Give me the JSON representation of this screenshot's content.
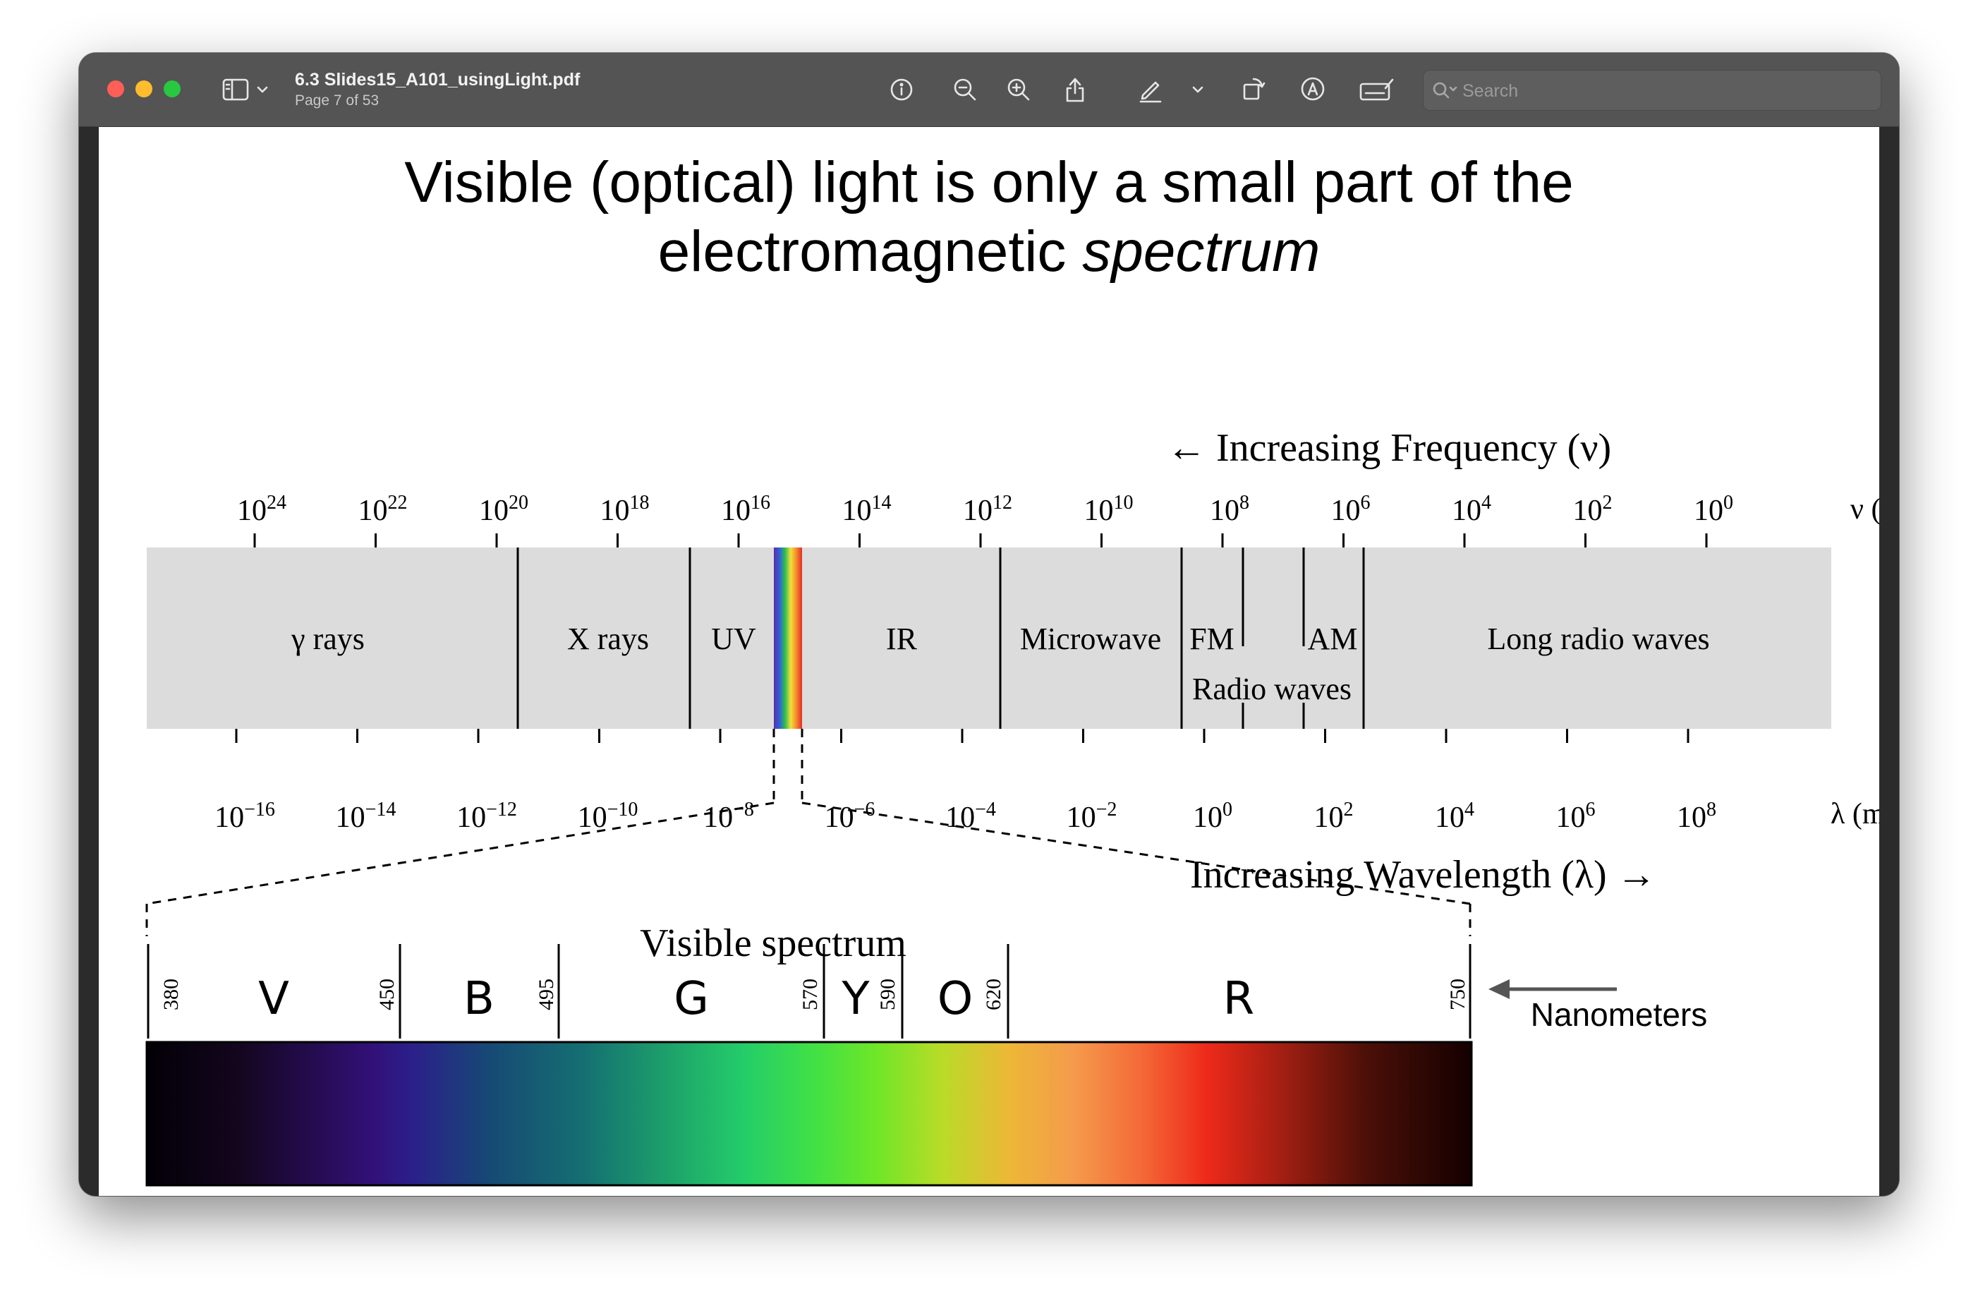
{
  "window": {
    "title": "6.3 Slides15_A101_usingLight.pdf",
    "subtitle": "Page 7 of 53"
  },
  "toolbar": {
    "icons": [
      "sidebar-icon",
      "chevron-down-icon",
      "info-icon",
      "zoom-out-icon",
      "zoom-in-icon",
      "share-icon",
      "markup-pen-icon",
      "chevron-down-icon",
      "rotate-icon",
      "annotate-icon",
      "signature-icon",
      "search-icon"
    ],
    "search_placeholder": "Search"
  },
  "slide": {
    "title_line1": "Visible (optical) light is only a small part of the",
    "title_line2_plain": "electromagnetic ",
    "title_line2_italic": "spectrum"
  },
  "em_spectrum": {
    "frequency_caption": "← Increasing Frequency (ν)",
    "wavelength_caption": "Increasing Wavelength (λ) →",
    "frequency_unit": "ν (Hz)",
    "wavelength_unit": "λ (m)",
    "frequency_ticks": [
      {
        "base": "10",
        "exp": "24"
      },
      {
        "base": "10",
        "exp": "22"
      },
      {
        "base": "10",
        "exp": "20"
      },
      {
        "base": "10",
        "exp": "18"
      },
      {
        "base": "10",
        "exp": "16"
      },
      {
        "base": "10",
        "exp": "14"
      },
      {
        "base": "10",
        "exp": "12"
      },
      {
        "base": "10",
        "exp": "10"
      },
      {
        "base": "10",
        "exp": "8"
      },
      {
        "base": "10",
        "exp": "6"
      },
      {
        "base": "10",
        "exp": "4"
      },
      {
        "base": "10",
        "exp": "2"
      },
      {
        "base": "10",
        "exp": "0"
      }
    ],
    "wavelength_ticks": [
      {
        "base": "10",
        "exp": "−16"
      },
      {
        "base": "10",
        "exp": "−14"
      },
      {
        "base": "10",
        "exp": "−12"
      },
      {
        "base": "10",
        "exp": "−10"
      },
      {
        "base": "10",
        "exp": "−8"
      },
      {
        "base": "10",
        "exp": "−6"
      },
      {
        "base": "10",
        "exp": "−4"
      },
      {
        "base": "10",
        "exp": "−2"
      },
      {
        "base": "10",
        "exp": "0"
      },
      {
        "base": "10",
        "exp": "2"
      },
      {
        "base": "10",
        "exp": "4"
      },
      {
        "base": "10",
        "exp": "6"
      },
      {
        "base": "10",
        "exp": "8"
      }
    ],
    "regions": [
      "γ rays",
      "X rays",
      "UV",
      "IR",
      "Microwave",
      "FM",
      "AM",
      "Long radio waves"
    ],
    "radio_waves_label": "Radio waves"
  },
  "visible_spectrum": {
    "title": "Visible spectrum",
    "nanometer_marks": [
      "380",
      "450",
      "495",
      "570",
      "590",
      "620",
      "750"
    ],
    "color_letters": [
      "V",
      "B",
      "G",
      "Y",
      "O",
      "R"
    ],
    "nanometers_label": "Nanometers"
  }
}
